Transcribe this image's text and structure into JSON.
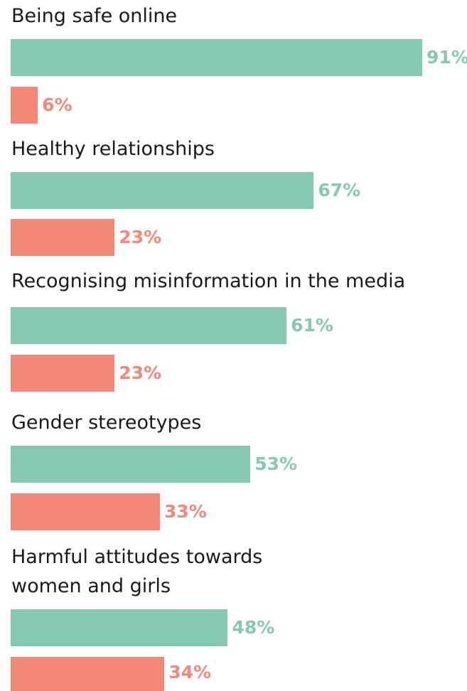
{
  "chart_data": {
    "type": "bar",
    "orientation": "horizontal",
    "categories": [
      "Being safe online",
      "Healthy relationships",
      "Recognising misinformation in the media",
      "Gender stereotypes",
      "Harmful attitudes towards women and girls"
    ],
    "series": [
      {
        "color": "#86c8b4",
        "values": [
          91,
          67,
          61,
          53,
          48
        ],
        "value_labels": [
          "91%",
          "67%",
          "61%",
          "53%",
          "48%"
        ]
      },
      {
        "color": "#f28877",
        "values": [
          6,
          23,
          23,
          33,
          34
        ],
        "value_labels": [
          "6%",
          "23%",
          "23%",
          "33%",
          "34%"
        ]
      }
    ]
  }
}
